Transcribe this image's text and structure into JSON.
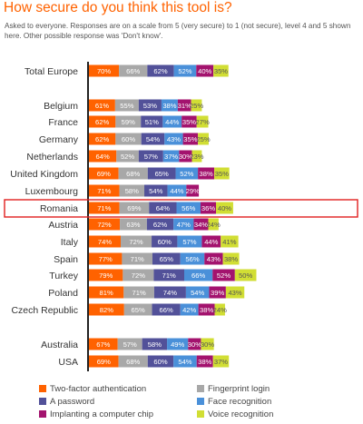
{
  "title": "How secure do you think this tool is?",
  "subtitle": "Asked to everyone. Responses are on a scale from 5 (very secure) to 1 (not secure), level 4 and 5 shown here. Other possible response was 'Don't know'.",
  "chart_data": {
    "type": "bar",
    "orientation": "horizontal",
    "title": "How secure do you think this tool is?",
    "categories": [
      "Total Europe",
      "Belgium",
      "France",
      "Germany",
      "Netherlands",
      "United Kingdom",
      "Luxembourg",
      "Romania",
      "Austria",
      "Italy",
      "Spain",
      "Turkey",
      "Poland",
      "Czech Republic",
      "Australia",
      "USA"
    ],
    "highlighted_category": "Romania",
    "value_suffix": "%",
    "series": [
      {
        "name": "Two-factor authentication",
        "color": "#ff6200",
        "values": [
          70,
          61,
          62,
          62,
          64,
          69,
          71,
          71,
          72,
          74,
          77,
          79,
          81,
          82,
          67,
          69
        ]
      },
      {
        "name": "Fingerprint login",
        "color": "#a8a8a8",
        "values": [
          66,
          55,
          59,
          60,
          52,
          68,
          58,
          69,
          63,
          72,
          71,
          72,
          71,
          65,
          57,
          68
        ]
      },
      {
        "name": "A password",
        "color": "#525199",
        "values": [
          62,
          53,
          51,
          54,
          57,
          65,
          54,
          64,
          62,
          60,
          65,
          71,
          74,
          66,
          58,
          60
        ]
      },
      {
        "name": "Face recognition",
        "color": "#4a90d9",
        "values": [
          52,
          38,
          44,
          43,
          37,
          52,
          44,
          56,
          47,
          57,
          56,
          66,
          54,
          42,
          49,
          54
        ]
      },
      {
        "name": "Implanting a computer chip",
        "color": "#a3136e",
        "values": [
          40,
          31,
          35,
          35,
          30,
          38,
          29,
          36,
          34,
          44,
          43,
          52,
          39,
          38,
          30,
          38
        ]
      },
      {
        "name": "Voice recognition",
        "color": "#d1de34",
        "values": [
          35,
          25,
          27,
          25,
          23,
          35,
          null,
          40,
          24,
          41,
          38,
          50,
          43,
          24,
          30,
          37
        ]
      }
    ],
    "legend_position": "bottom",
    "grid": false
  }
}
